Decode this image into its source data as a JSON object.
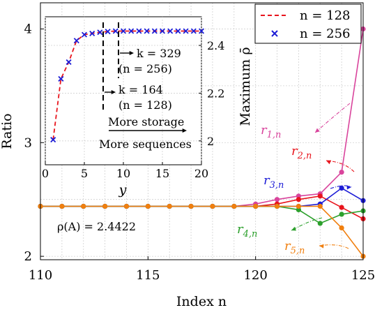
{
  "chart_data": {
    "main": {
      "type": "line",
      "xlabel": "Index n",
      "ylabel": "Ratio",
      "xlim": [
        110,
        125
      ],
      "ylim": [
        1.97,
        4.23
      ],
      "x_ticks": [
        "110",
        "115",
        "120",
        "125"
      ],
      "x_tick_values": [
        110,
        115,
        120,
        125
      ],
      "y_ticks": [
        "2",
        "3",
        "4"
      ],
      "y_tick_values": [
        2,
        3,
        4
      ],
      "x": [
        110,
        111,
        112,
        113,
        114,
        115,
        116,
        117,
        118,
        119,
        120,
        121,
        122,
        123,
        124,
        125
      ],
      "series": [
        {
          "name": "r1,n",
          "color": "#d9449c",
          "values": [
            2.44,
            2.44,
            2.44,
            2.44,
            2.44,
            2.44,
            2.44,
            2.44,
            2.44,
            2.44,
            2.46,
            2.5,
            2.53,
            2.55,
            2.74,
            4.0
          ]
        },
        {
          "name": "r2,n",
          "color": "#e8141c",
          "values": [
            2.44,
            2.44,
            2.44,
            2.44,
            2.44,
            2.44,
            2.44,
            2.44,
            2.44,
            2.44,
            2.44,
            2.46,
            2.5,
            2.53,
            2.43,
            2.33
          ]
        },
        {
          "name": "r3,n",
          "color": "#1d1dd6",
          "values": [
            2.44,
            2.44,
            2.44,
            2.44,
            2.44,
            2.44,
            2.44,
            2.44,
            2.44,
            2.44,
            2.44,
            2.44,
            2.44,
            2.46,
            2.6,
            2.49
          ]
        },
        {
          "name": "r4,n",
          "color": "#2ca02c",
          "values": [
            2.44,
            2.44,
            2.44,
            2.44,
            2.44,
            2.44,
            2.44,
            2.44,
            2.44,
            2.44,
            2.44,
            2.44,
            2.41,
            2.29,
            2.37,
            2.4
          ]
        },
        {
          "name": "r5,n",
          "color": "#f07f0f",
          "values": [
            2.44,
            2.44,
            2.44,
            2.44,
            2.44,
            2.44,
            2.44,
            2.44,
            2.44,
            2.44,
            2.44,
            2.44,
            2.44,
            2.44,
            2.25,
            2.0
          ]
        }
      ],
      "annotation": "ρ(A) = 2.4422"
    },
    "inset": {
      "type": "scatter",
      "xlabel": "y",
      "ylabel": "Maximum ρ̄",
      "xlim": [
        0,
        20
      ],
      "ylim": [
        1.9,
        2.52
      ],
      "x_ticks": [
        "0",
        "5",
        "10",
        "15",
        "20"
      ],
      "x_tick_values": [
        0,
        5,
        10,
        15,
        20
      ],
      "y_ticks": [
        "2",
        "2.2",
        "2.4"
      ],
      "y_tick_values": [
        2,
        2.2,
        2.4
      ],
      "series": [
        {
          "name": "n = 128",
          "style": "dashed-line",
          "color": "#e8141c",
          "x": [
            1,
            2,
            3,
            4,
            5,
            6,
            7,
            8,
            9,
            10,
            11,
            12,
            13,
            14,
            15,
            16,
            17,
            18,
            19,
            20
          ],
          "values": [
            2.005,
            2.26,
            2.33,
            2.42,
            2.445,
            2.45,
            2.455,
            2.458,
            2.46,
            2.46,
            2.46,
            2.46,
            2.46,
            2.46,
            2.46,
            2.46,
            2.46,
            2.46,
            2.46,
            2.46
          ]
        },
        {
          "name": "n = 256",
          "style": "x-markers",
          "color": "#1d1dd6",
          "x": [
            1,
            2,
            3,
            4,
            5,
            6,
            7,
            8,
            9,
            10,
            11,
            12,
            13,
            14,
            15,
            16,
            17,
            18,
            19,
            20
          ],
          "values": [
            2.005,
            2.26,
            2.33,
            2.42,
            2.445,
            2.45,
            2.455,
            2.458,
            2.46,
            2.46,
            2.46,
            2.46,
            2.46,
            2.46,
            2.46,
            2.46,
            2.46,
            2.46,
            2.46,
            2.46
          ]
        }
      ],
      "annotations": {
        "k_256": "k = 329",
        "n_256": "(n = 256)",
        "k_128": "k = 164",
        "n_128": "(n = 128)",
        "storage": "More storage",
        "sequences": "More sequences"
      }
    },
    "legend": {
      "position": "top-right",
      "entries": [
        {
          "label": "n = 128",
          "style": "dashed-line",
          "color": "#e8141c"
        },
        {
          "label": "n = 256",
          "style": "x-marker",
          "color": "#1d1dd6"
        }
      ]
    }
  }
}
